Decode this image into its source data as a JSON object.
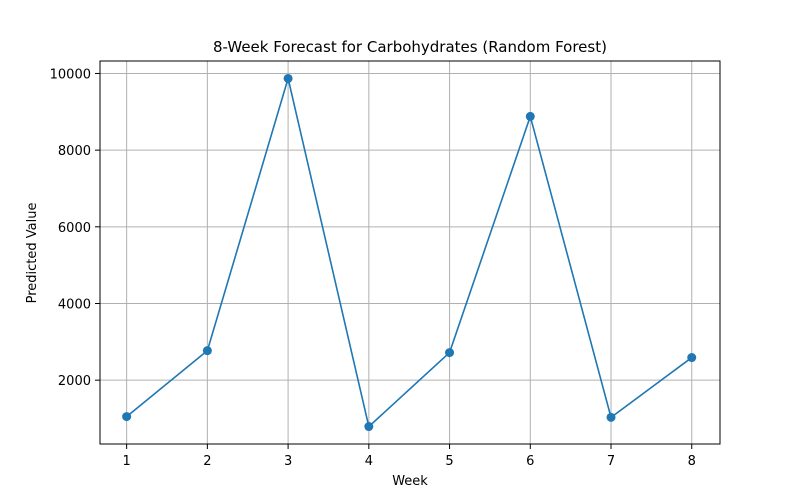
{
  "chart_data": {
    "type": "line",
    "title": "8-Week Forecast for Carbohydrates (Random Forest)",
    "xlabel": "Week",
    "ylabel": "Predicted Value",
    "x": [
      1,
      2,
      3,
      4,
      5,
      6,
      7,
      8
    ],
    "series": [
      {
        "values": [
          1050,
          2770,
          9870,
          790,
          2720,
          8880,
          1030,
          2590
        ],
        "color": "#1f77b4",
        "marker": "circle"
      }
    ],
    "x_ticks": [
      "1",
      "2",
      "3",
      "4",
      "5",
      "6",
      "7",
      "8"
    ],
    "y_ticks": [
      "2000",
      "4000",
      "6000",
      "8000",
      "10000"
    ],
    "xlim": [
      0.67,
      8.35
    ],
    "ylim": [
      335,
      10325
    ],
    "grid": true
  }
}
